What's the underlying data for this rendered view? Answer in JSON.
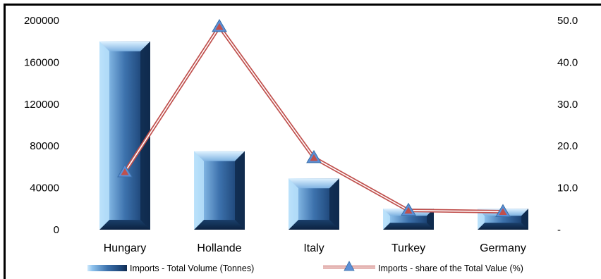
{
  "chart_data": {
    "type": "bar",
    "categories": [
      "Hungary",
      "Hollande",
      "Italy",
      "Turkey",
      "Germany"
    ],
    "series": [
      {
        "name": "Imports - Total Volume (Tonnes)",
        "type": "bar",
        "axis": "left",
        "values": [
          180000,
          75000,
          49000,
          20000,
          20000
        ]
      },
      {
        "name": "Imports - share of the Total Value (%)",
        "type": "line",
        "axis": "right",
        "values": [
          13.8,
          48.5,
          17.2,
          4.6,
          4.3
        ]
      }
    ],
    "y_left": {
      "ylim": [
        0,
        200000
      ],
      "ticks": [
        "0",
        "40000",
        "80000",
        "120000",
        "160000",
        "200000"
      ]
    },
    "y_right": {
      "ylim": [
        0,
        50
      ],
      "ticks": [
        "-",
        "10.0",
        "20.0",
        "30.0",
        "40.0",
        "50.0"
      ]
    },
    "grid": false,
    "legend": "bottom",
    "colors": {
      "bar": "#3a6fa8",
      "bar_light": "#a9d4f5",
      "bar_dark": "#173a63",
      "line": "#c0504d",
      "marker": "#5b8fd6"
    }
  }
}
